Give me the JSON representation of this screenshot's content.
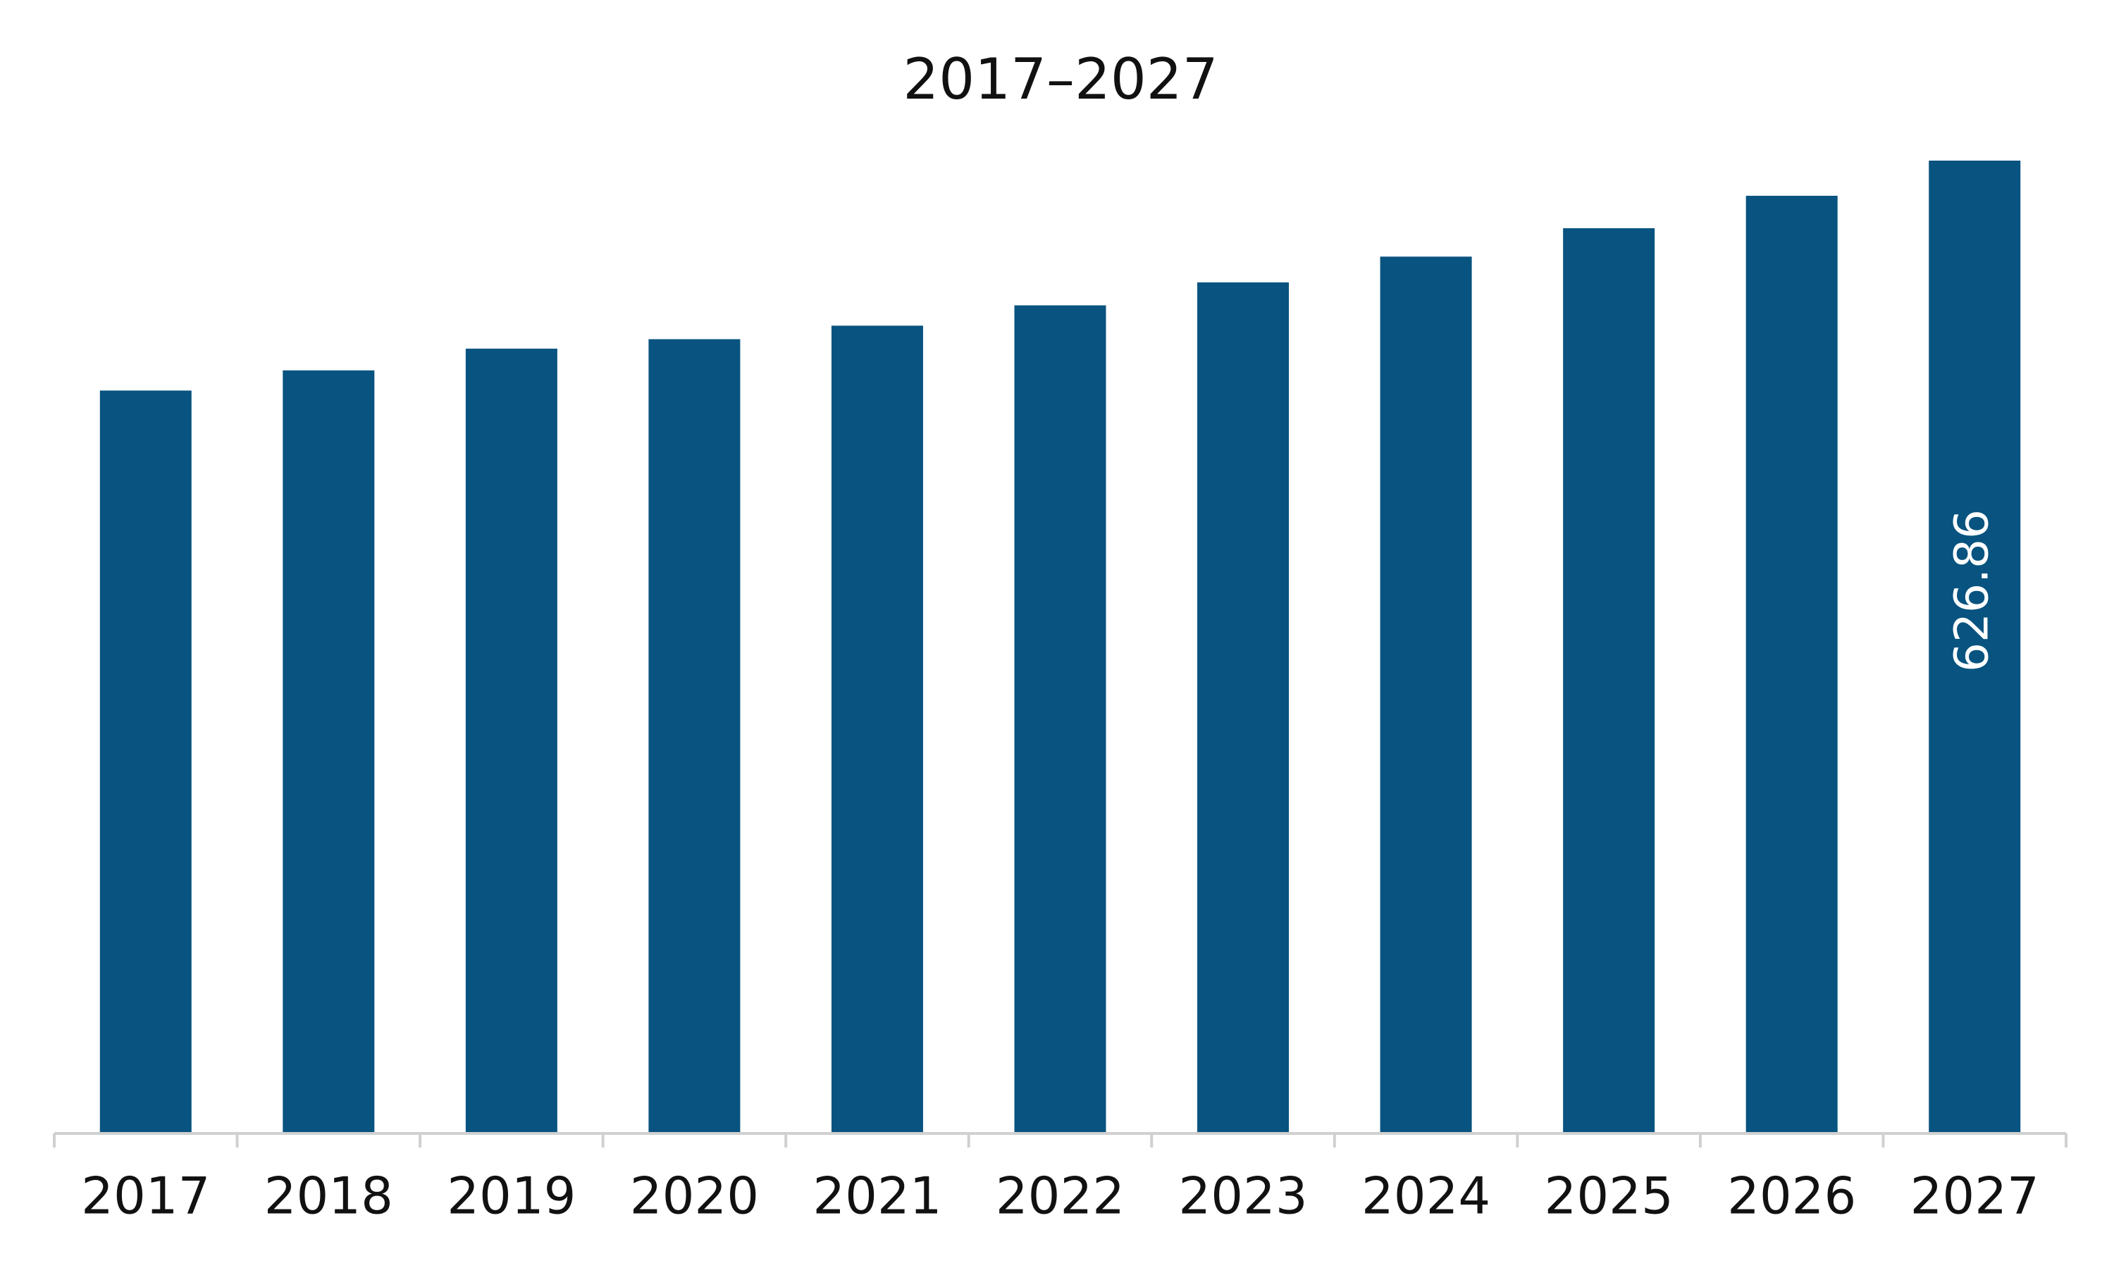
{
  "chart_data": {
    "type": "bar",
    "title": "2017–2027",
    "categories": [
      "2017",
      "2018",
      "2019",
      "2020",
      "2021",
      "2022",
      "2023",
      "2024",
      "2025",
      "2026",
      "2027"
    ],
    "values": [
      478.7,
      491.7,
      505.7,
      511.8,
      520.5,
      533.6,
      548.4,
      565.0,
      583.3,
      604.2,
      626.86
    ],
    "value_labels": [
      null,
      null,
      null,
      null,
      null,
      null,
      null,
      null,
      null,
      null,
      "626.86"
    ],
    "color": "#08537f"
  }
}
